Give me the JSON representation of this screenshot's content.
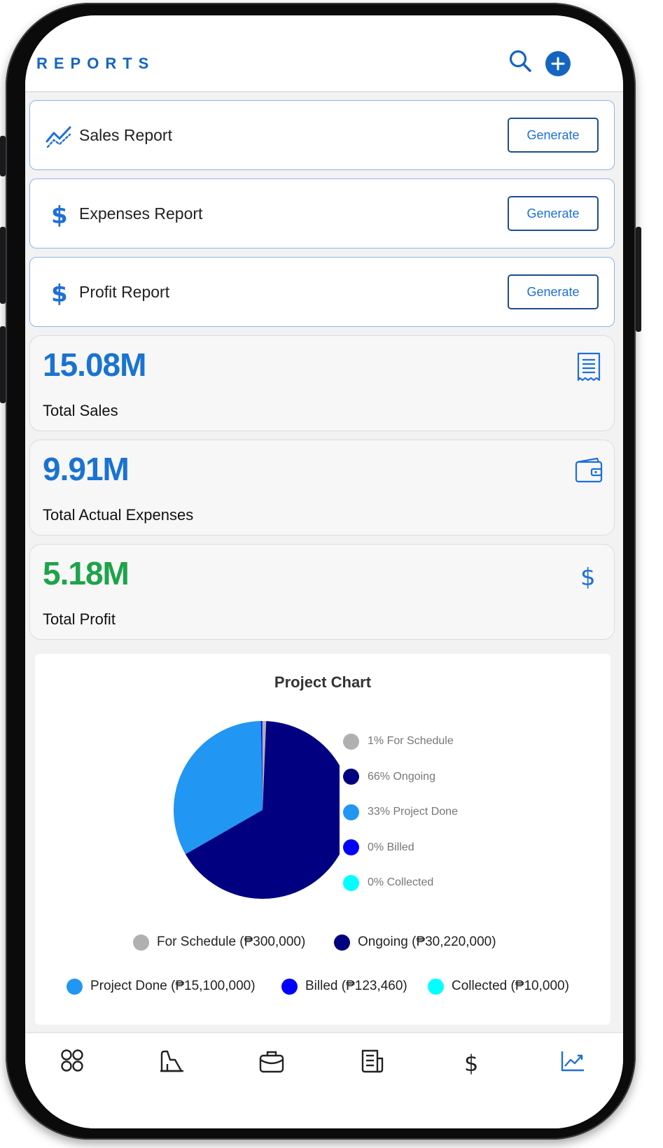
{
  "header": {
    "title": "REPORTS",
    "search_icon": "search-icon",
    "add_icon": "plus-circle-icon",
    "accent": "#1565c0"
  },
  "reports": [
    {
      "label": "Sales Report",
      "icon": "trending-line-icon",
      "button": "Generate"
    },
    {
      "label": "Expenses Report",
      "icon": "dollar-icon",
      "button": "Generate"
    },
    {
      "label": "Profit Report",
      "icon": "dollar-icon",
      "button": "Generate"
    }
  ],
  "stats": [
    {
      "value": "15.08M",
      "label": "Total Sales",
      "icon": "receipt-icon",
      "color": "#1a73d0"
    },
    {
      "value": "9.91M",
      "label": "Total Actual Expenses",
      "icon": "wallet-icon",
      "color": "#1a73d0"
    },
    {
      "value": "5.18M",
      "label": "Total Profit",
      "icon": "dollar-outline-icon",
      "color": "#1ea34a"
    }
  ],
  "chart_data": {
    "type": "pie",
    "title": "Project Chart",
    "categories": [
      "For Schedule",
      "Ongoing",
      "Project Done",
      "Billed",
      "Collected"
    ],
    "values": [
      300000,
      30220000,
      15100000,
      123460,
      10000
    ],
    "percent_labels": [
      "1% For Schedule",
      "66% Ongoing",
      "33% Project Done",
      "0% Billed",
      "0% Collected"
    ],
    "amount_labels": [
      "For Schedule (₱300,000)",
      "Ongoing (₱30,220,000)",
      "Project Done (₱15,100,000)",
      "Billed (₱123,460)",
      "Collected (₱10,000)"
    ],
    "colors": [
      "#b0b0b0",
      "#000080",
      "#2196f3",
      "#0000ff",
      "#00ffff"
    ],
    "legend_placement": "right"
  },
  "nav": [
    {
      "icon": "grid-icon",
      "active": false
    },
    {
      "icon": "building-icon",
      "active": false
    },
    {
      "icon": "briefcase-icon",
      "active": false
    },
    {
      "icon": "document-icon",
      "active": false
    },
    {
      "icon": "dollar-icon",
      "active": false
    },
    {
      "icon": "trending-up-icon",
      "active": true
    }
  ]
}
